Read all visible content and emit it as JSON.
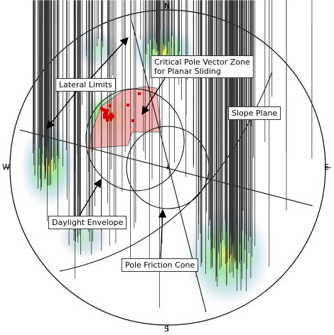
{
  "compass": {
    "north": "N",
    "south": "S",
    "east": "E",
    "west": "W"
  },
  "annotations": {
    "critical_zone_line1": "Critical Pole Vector Zone",
    "critical_zone_line2": "for Planar Sliding",
    "lateral_limits": "Lateral Limits",
    "slope_plane": "Slope Plane",
    "daylight_envelope": "Daylight Envelope",
    "pole_friction_cone": "Pole Friction Cone"
  },
  "colors": {
    "critical_zone_fill": "#f7a8a8",
    "critical_pole": "#d40000",
    "contour_blue": "#d8dde8",
    "contour_green": "#a8e8a8",
    "contour_yellow": "#f0f060",
    "contour_orange": "#f0a040"
  }
}
